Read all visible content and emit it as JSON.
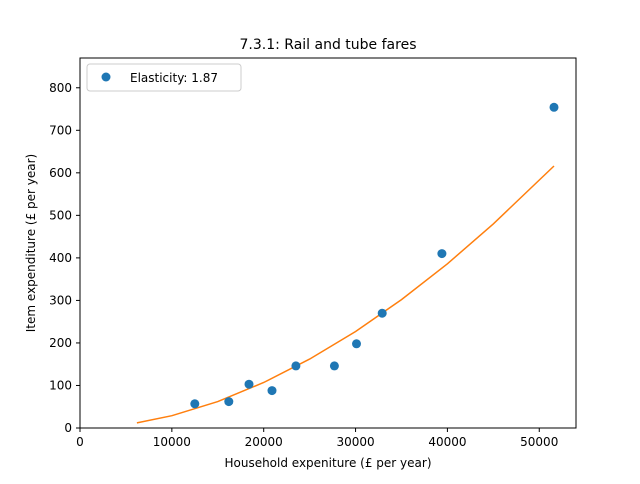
{
  "chart_data": {
    "type": "scatter",
    "title": "7.3.1: Rail and tube fares",
    "xlabel": "Household expeniture (£ per year)",
    "ylabel": "Item expenditure (£ per year)",
    "xlim": [
      0,
      54000
    ],
    "ylim": [
      0,
      870
    ],
    "xticks": [
      0,
      10000,
      20000,
      30000,
      40000,
      50000
    ],
    "yticks": [
      0,
      100,
      200,
      300,
      400,
      500,
      600,
      700,
      800
    ],
    "grid": false,
    "legend_position": "top-left",
    "series": [
      {
        "name": "Elasticity: 1.87",
        "kind": "points",
        "color": "#1f77b4",
        "x": [
          12500,
          16200,
          18400,
          20900,
          23500,
          27700,
          30100,
          32900,
          39400,
          51600
        ],
        "y": [
          57,
          62,
          103,
          88,
          146,
          146,
          198,
          270,
          410,
          754
        ]
      },
      {
        "kind": "fit_line",
        "color": "#ff7f0e",
        "x": [
          6200,
          10000,
          15000,
          20000,
          25000,
          30000,
          35000,
          40000,
          45000,
          51600
        ],
        "y": [
          12,
          29,
          62,
          107,
          162,
          227,
          302,
          386,
          480,
          616
        ]
      }
    ]
  }
}
